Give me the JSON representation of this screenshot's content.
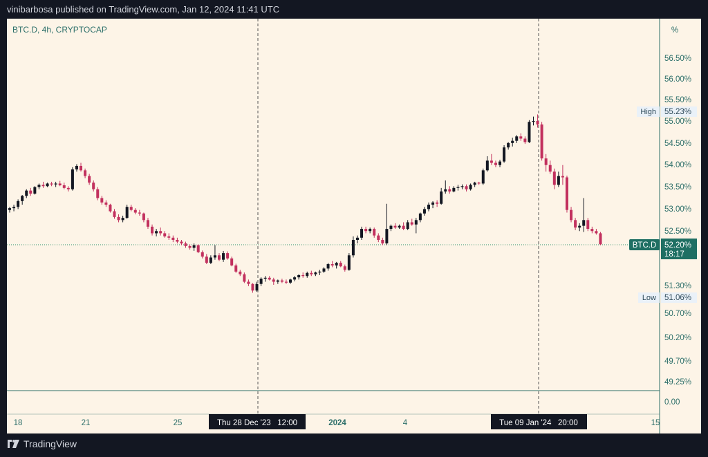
{
  "header": {
    "publish_line": "vinibarbosa published on TradingView.com, Jan 12, 2024 11:41 UTC"
  },
  "footer": {
    "brand": "TradingView"
  },
  "chart_data": {
    "type": "candlestick",
    "symbol_label": "BTC.D, 4h, CRYPTOCAP",
    "unit_label": "%",
    "y_ticks": [
      "56.50%",
      "56.00%",
      "55.50%",
      "55.00%",
      "54.50%",
      "54.00%",
      "53.50%",
      "53.00%",
      "52.50%",
      "51.30%",
      "50.70%",
      "50.20%",
      "49.70%",
      "49.25%",
      "0.00"
    ],
    "x_ticks": [
      "18",
      "21",
      "25",
      "2024",
      "4",
      "15"
    ],
    "crosshair_labels": [
      "Thu 28 Dec '23   12:00",
      "Tue 09 Jan '24   20:00"
    ],
    "high_label": "High",
    "high_value": "55.23%",
    "low_label": "Low",
    "low_value": "51.06%",
    "price_tag_name": "BTC.D",
    "price_tag_value": "52.20%",
    "price_tag_countdown": "18:17",
    "last_price": 52.2,
    "colors": {
      "up": "#131722",
      "down": "#c2305e",
      "background": "#fdf4e7",
      "text": "#2e6f6a"
    },
    "candles": [
      [
        52.98,
        53.05,
        52.92,
        53.02
      ],
      [
        53.02,
        53.1,
        52.95,
        53.05
      ],
      [
        53.05,
        53.22,
        53.0,
        53.18
      ],
      [
        53.18,
        53.32,
        53.1,
        53.3
      ],
      [
        53.3,
        53.45,
        53.25,
        53.42
      ],
      [
        53.42,
        53.48,
        53.3,
        53.35
      ],
      [
        53.35,
        53.52,
        53.33,
        53.5
      ],
      [
        53.5,
        53.58,
        53.45,
        53.55
      ],
      [
        53.55,
        53.62,
        53.48,
        53.52
      ],
      [
        53.52,
        53.6,
        53.5,
        53.58
      ],
      [
        53.58,
        53.62,
        53.52,
        53.56
      ],
      [
        53.56,
        53.62,
        53.5,
        53.58
      ],
      [
        53.58,
        53.64,
        53.52,
        53.54
      ],
      [
        53.54,
        53.6,
        53.45,
        53.48
      ],
      [
        53.48,
        53.52,
        53.4,
        53.45
      ],
      [
        53.45,
        53.95,
        53.42,
        53.9
      ],
      [
        53.9,
        54.02,
        53.85,
        53.98
      ],
      [
        53.98,
        54.05,
        53.85,
        53.88
      ],
      [
        53.88,
        53.92,
        53.7,
        53.75
      ],
      [
        53.75,
        53.8,
        53.55,
        53.6
      ],
      [
        53.6,
        53.65,
        53.4,
        53.45
      ],
      [
        53.45,
        53.5,
        53.2,
        53.25
      ],
      [
        53.25,
        53.3,
        53.1,
        53.15
      ],
      [
        53.15,
        53.2,
        53.05,
        53.1
      ],
      [
        53.1,
        53.12,
        52.92,
        52.95
      ],
      [
        52.95,
        53.0,
        52.78,
        52.82
      ],
      [
        52.82,
        52.88,
        52.7,
        52.75
      ],
      [
        52.75,
        52.85,
        52.7,
        52.8
      ],
      [
        52.8,
        53.1,
        52.78,
        53.05
      ],
      [
        53.05,
        53.1,
        52.95,
        52.98
      ],
      [
        52.98,
        53.02,
        52.88,
        52.92
      ],
      [
        52.92,
        52.98,
        52.85,
        52.9
      ],
      [
        52.9,
        52.92,
        52.7,
        52.75
      ],
      [
        52.75,
        52.8,
        52.55,
        52.6
      ],
      [
        52.6,
        52.65,
        52.4,
        52.45
      ],
      [
        52.45,
        52.55,
        52.38,
        52.5
      ],
      [
        52.5,
        52.58,
        52.4,
        52.45
      ],
      [
        52.45,
        52.5,
        52.35,
        52.38
      ],
      [
        52.38,
        52.45,
        52.3,
        52.35
      ],
      [
        52.35,
        52.4,
        52.25,
        52.3
      ],
      [
        52.3,
        52.35,
        52.22,
        52.26
      ],
      [
        52.26,
        52.3,
        52.18,
        52.22
      ],
      [
        52.22,
        52.26,
        52.12,
        52.16
      ],
      [
        52.16,
        52.2,
        52.08,
        52.12
      ],
      [
        52.12,
        52.22,
        52.05,
        52.18
      ],
      [
        52.18,
        52.2,
        52.0,
        52.02
      ],
      [
        52.02,
        52.06,
        51.88,
        51.92
      ],
      [
        51.92,
        51.98,
        51.75,
        51.78
      ],
      [
        51.78,
        51.95,
        51.75,
        51.9
      ],
      [
        51.9,
        52.18,
        51.85,
        51.95
      ],
      [
        51.95,
        52.0,
        51.82,
        51.85
      ],
      [
        51.85,
        52.05,
        51.8,
        52.0
      ],
      [
        52.0,
        52.04,
        51.85,
        51.88
      ],
      [
        51.88,
        51.92,
        51.7,
        51.72
      ],
      [
        51.72,
        51.76,
        51.55,
        51.58
      ],
      [
        51.58,
        51.62,
        51.48,
        51.52
      ],
      [
        51.52,
        51.56,
        51.32,
        51.35
      ],
      [
        51.35,
        51.4,
        51.25,
        51.3
      ],
      [
        51.3,
        51.32,
        51.1,
        51.15
      ],
      [
        51.15,
        51.35,
        51.12,
        51.3
      ],
      [
        51.3,
        51.45,
        51.25,
        51.42
      ],
      [
        51.42,
        51.48,
        51.35,
        51.44
      ],
      [
        51.44,
        51.48,
        51.38,
        51.4
      ],
      [
        51.4,
        51.44,
        51.28,
        51.35
      ],
      [
        51.35,
        51.4,
        51.3,
        51.38
      ],
      [
        51.38,
        51.42,
        51.32,
        51.35
      ],
      [
        51.35,
        51.4,
        51.3,
        51.33
      ],
      [
        51.33,
        51.42,
        51.3,
        51.4
      ],
      [
        51.4,
        51.48,
        51.36,
        51.45
      ],
      [
        51.45,
        51.52,
        51.4,
        51.5
      ],
      [
        51.5,
        51.56,
        51.44,
        51.48
      ],
      [
        51.48,
        51.58,
        51.44,
        51.55
      ],
      [
        51.55,
        51.6,
        51.48,
        51.52
      ],
      [
        51.52,
        51.58,
        51.48,
        51.56
      ],
      [
        51.56,
        51.62,
        51.5,
        51.58
      ],
      [
        51.58,
        51.68,
        51.55,
        51.65
      ],
      [
        51.65,
        51.78,
        51.6,
        51.75
      ],
      [
        51.75,
        51.82,
        51.68,
        51.72
      ],
      [
        51.72,
        51.8,
        51.65,
        51.78
      ],
      [
        51.78,
        51.82,
        51.68,
        51.7
      ],
      [
        51.7,
        51.74,
        51.58,
        51.62
      ],
      [
        51.62,
        52.0,
        51.6,
        51.95
      ],
      [
        51.95,
        52.38,
        51.9,
        52.3
      ],
      [
        52.3,
        52.4,
        52.22,
        52.35
      ],
      [
        52.35,
        52.6,
        52.3,
        52.55
      ],
      [
        52.55,
        52.6,
        52.45,
        52.5
      ],
      [
        52.5,
        52.58,
        52.45,
        52.55
      ],
      [
        52.55,
        52.58,
        52.35,
        52.4
      ],
      [
        52.4,
        52.45,
        52.25,
        52.3
      ],
      [
        52.3,
        52.35,
        52.18,
        52.22
      ],
      [
        52.22,
        53.12,
        52.18,
        52.55
      ],
      [
        52.55,
        52.65,
        52.5,
        52.62
      ],
      [
        52.62,
        52.68,
        52.55,
        52.58
      ],
      [
        52.58,
        52.65,
        52.55,
        52.62
      ],
      [
        52.62,
        52.7,
        52.52,
        52.55
      ],
      [
        52.55,
        52.75,
        52.52,
        52.7
      ],
      [
        52.7,
        52.78,
        52.62,
        52.65
      ],
      [
        52.65,
        52.8,
        52.45,
        52.75
      ],
      [
        52.75,
        52.92,
        52.7,
        52.9
      ],
      [
        52.9,
        53.05,
        52.85,
        53.0
      ],
      [
        53.0,
        53.15,
        52.95,
        53.1
      ],
      [
        53.1,
        53.18,
        53.02,
        53.15
      ],
      [
        53.15,
        53.2,
        53.05,
        53.12
      ],
      [
        53.12,
        53.48,
        53.1,
        53.4
      ],
      [
        53.4,
        53.65,
        53.35,
        53.45
      ],
      [
        53.45,
        53.52,
        53.35,
        53.4
      ],
      [
        53.4,
        53.52,
        53.38,
        53.48
      ],
      [
        53.48,
        53.55,
        53.42,
        53.5
      ],
      [
        53.5,
        53.56,
        53.45,
        53.52
      ],
      [
        53.52,
        53.56,
        53.4,
        53.45
      ],
      [
        53.45,
        53.58,
        53.42,
        53.55
      ],
      [
        53.55,
        53.62,
        53.5,
        53.6
      ],
      [
        53.6,
        53.62,
        53.55,
        53.58
      ],
      [
        53.58,
        53.92,
        53.55,
        53.88
      ],
      [
        53.88,
        54.2,
        53.85,
        54.1
      ],
      [
        54.1,
        54.25,
        54.0,
        54.05
      ],
      [
        54.05,
        54.1,
        53.95,
        54.0
      ],
      [
        54.0,
        54.12,
        53.95,
        54.08
      ],
      [
        54.08,
        54.45,
        54.05,
        54.4
      ],
      [
        54.4,
        54.52,
        54.35,
        54.5
      ],
      [
        54.5,
        54.62,
        54.42,
        54.55
      ],
      [
        54.55,
        54.68,
        54.5,
        54.65
      ],
      [
        54.65,
        54.72,
        54.55,
        54.6
      ],
      [
        54.6,
        54.65,
        54.48,
        54.52
      ],
      [
        54.52,
        55.02,
        54.5,
        54.98
      ],
      [
        54.98,
        55.1,
        54.9,
        55.0
      ],
      [
        55.0,
        55.15,
        54.85,
        54.92
      ],
      [
        54.92,
        54.98,
        54.1,
        54.15
      ],
      [
        54.15,
        54.25,
        53.85,
        54.0
      ],
      [
        54.0,
        54.1,
        53.8,
        53.85
      ],
      [
        53.85,
        53.92,
        53.45,
        53.55
      ],
      [
        53.55,
        53.85,
        53.5,
        53.75
      ],
      [
        53.75,
        54.0,
        53.55,
        53.72
      ],
      [
        53.72,
        53.76,
        52.92,
        52.98
      ],
      [
        52.98,
        53.05,
        52.7,
        52.75
      ],
      [
        52.75,
        52.8,
        52.52,
        52.58
      ],
      [
        52.58,
        52.68,
        52.5,
        52.62
      ],
      [
        52.62,
        53.25,
        52.48,
        52.75
      ],
      [
        52.75,
        52.8,
        52.5,
        52.55
      ],
      [
        52.55,
        52.6,
        52.45,
        52.5
      ],
      [
        52.5,
        52.55,
        52.42,
        52.45
      ],
      [
        52.45,
        52.48,
        52.18,
        52.2
      ]
    ]
  }
}
